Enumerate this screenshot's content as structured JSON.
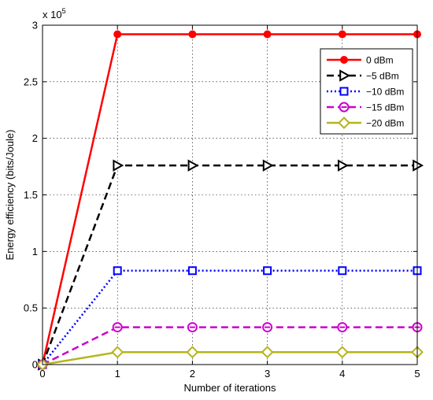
{
  "chart_data": {
    "type": "line",
    "title": "",
    "xlabel": "Number of iterations",
    "ylabel": "Energy efficiency (bits/Joule)",
    "y_multiplier_base": "x 10",
    "y_multiplier_exp": "5",
    "x_ticks": [
      0,
      1,
      2,
      3,
      4,
      5
    ],
    "y_ticks": [
      0,
      0.5,
      1,
      1.5,
      2,
      2.5,
      3
    ],
    "y_tick_labels": [
      "0",
      "0.5",
      "1",
      "1.5",
      "2",
      "2.5",
      "3"
    ],
    "xlim": [
      0,
      5
    ],
    "ylim": [
      0,
      3
    ],
    "grid": true,
    "legend_position": "top-right",
    "x": [
      0,
      1,
      2,
      3,
      4,
      5
    ],
    "series": [
      {
        "name": "0 dBm",
        "values": [
          0,
          2.92,
          2.92,
          2.92,
          2.92,
          2.92
        ],
        "color": "#ff0000",
        "dash": "solid",
        "marker": "circle-filled"
      },
      {
        "name": "−5 dBm",
        "values": [
          0,
          1.76,
          1.76,
          1.76,
          1.76,
          1.76
        ],
        "color": "#000000",
        "dash": "dashed",
        "marker": "triangle-right"
      },
      {
        "name": "−10 dBm",
        "values": [
          0,
          0.83,
          0.83,
          0.83,
          0.83,
          0.83
        ],
        "color": "#0000ff",
        "dash": "dotted",
        "marker": "square"
      },
      {
        "name": "−15 dBm",
        "values": [
          0,
          0.33,
          0.33,
          0.33,
          0.33,
          0.33
        ],
        "color": "#cc00cc",
        "dash": "dashed",
        "marker": "circle-minus"
      },
      {
        "name": "−20 dBm",
        "values": [
          0,
          0.11,
          0.11,
          0.11,
          0.11,
          0.11
        ],
        "color": "#b5b51a",
        "dash": "solid",
        "marker": "diamond"
      }
    ]
  }
}
